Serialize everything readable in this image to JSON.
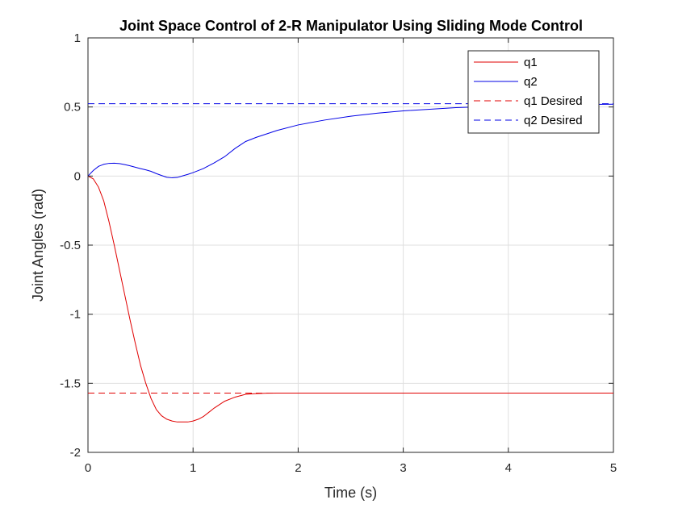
{
  "chart_data": {
    "type": "line",
    "title": "Joint Space Control of 2-R Manipulator Using Sliding Mode Control",
    "xlabel": "Time (s)",
    "ylabel": "Joint Angles (rad)",
    "xlim": [
      0,
      5
    ],
    "ylim": [
      -2,
      1
    ],
    "xticks": [
      0,
      1,
      2,
      3,
      4,
      5
    ],
    "xtick_labels": [
      "0",
      "1",
      "2",
      "3",
      "4",
      "5"
    ],
    "yticks": [
      -2,
      -1.5,
      -1,
      -0.5,
      0,
      0.5,
      1
    ],
    "ytick_labels": [
      "-2",
      "-1.5",
      "-1",
      "-0.5",
      "0",
      "0.5",
      "1"
    ],
    "grid": true,
    "legend_position": "top-right",
    "series": [
      {
        "name": "q1",
        "color": "#e00000",
        "style": "solid",
        "x": [
          0,
          0.05,
          0.1,
          0.15,
          0.2,
          0.25,
          0.3,
          0.35,
          0.4,
          0.45,
          0.5,
          0.55,
          0.6,
          0.65,
          0.7,
          0.75,
          0.8,
          0.85,
          0.9,
          0.95,
          1.0,
          1.05,
          1.1,
          1.15,
          1.2,
          1.3,
          1.4,
          1.5,
          1.6,
          1.7,
          1.8,
          2.0,
          2.5,
          3.0,
          4.0,
          5.0
        ],
        "values": [
          0,
          -0.02,
          -0.08,
          -0.18,
          -0.33,
          -0.5,
          -0.68,
          -0.86,
          -1.04,
          -1.21,
          -1.37,
          -1.5,
          -1.61,
          -1.69,
          -1.735,
          -1.76,
          -1.773,
          -1.78,
          -1.78,
          -1.78,
          -1.773,
          -1.76,
          -1.74,
          -1.71,
          -1.68,
          -1.63,
          -1.6,
          -1.58,
          -1.575,
          -1.572,
          -1.571,
          -1.571,
          -1.571,
          -1.571,
          -1.571,
          -1.571
        ]
      },
      {
        "name": "q2",
        "color": "#0000e6",
        "style": "solid",
        "x": [
          0,
          0.05,
          0.1,
          0.15,
          0.2,
          0.25,
          0.3,
          0.35,
          0.4,
          0.45,
          0.5,
          0.55,
          0.6,
          0.65,
          0.7,
          0.75,
          0.8,
          0.85,
          0.9,
          0.95,
          1.0,
          1.1,
          1.2,
          1.3,
          1.4,
          1.5,
          1.6,
          1.8,
          2.0,
          2.25,
          2.5,
          2.75,
          3.0,
          3.5,
          4.0,
          4.5,
          5.0
        ],
        "values": [
          0,
          0.04,
          0.07,
          0.085,
          0.092,
          0.093,
          0.09,
          0.083,
          0.074,
          0.064,
          0.054,
          0.045,
          0.034,
          0.018,
          0.004,
          -0.009,
          -0.013,
          -0.01,
          0.001,
          0.012,
          0.025,
          0.055,
          0.095,
          0.14,
          0.2,
          0.25,
          0.28,
          0.33,
          0.37,
          0.405,
          0.433,
          0.455,
          0.472,
          0.495,
          0.508,
          0.516,
          0.52
        ]
      },
      {
        "name": "q1 Desired",
        "color": "#e00000",
        "style": "dashed",
        "x": [
          0,
          5
        ],
        "values": [
          -1.5708,
          -1.5708
        ]
      },
      {
        "name": "q2 Desired",
        "color": "#0000e6",
        "style": "dashed",
        "x": [
          0,
          5
        ],
        "values": [
          0.5236,
          0.5236
        ]
      }
    ]
  }
}
